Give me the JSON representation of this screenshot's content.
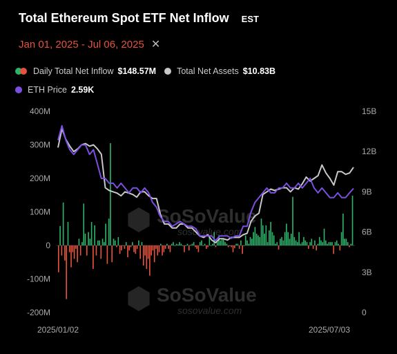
{
  "header": {
    "title": "Total Ethereum Spot ETF Net Inflow",
    "timezone": "EST",
    "date_range": "Jan 01, 2025 - Jul 06, 2025",
    "close_icon": "close-icon"
  },
  "legend": {
    "inflow_label": "Daily Total Net Inflow",
    "inflow_value": "$148.57M",
    "assets_label": "Total Net Assets",
    "assets_value": "$10.83B",
    "eth_label": "ETH Price",
    "eth_value": "2.59K"
  },
  "watermark": {
    "brand": "SoSoValue",
    "url": "sosovalue.com"
  },
  "colors": {
    "positive": "#2db36a",
    "negative": "#e5533d",
    "assets": "#c8c8c8",
    "eth": "#7b4fe0"
  },
  "chart_data": {
    "type": "bar",
    "title": "Total Ethereum Spot ETF Net Inflow",
    "y_left_ticks": [
      "400M",
      "300M",
      "200M",
      "100M",
      "0",
      "-100M",
      "-200M"
    ],
    "y_left_range": [
      -200,
      400
    ],
    "y_left_unit": "M",
    "y_right_ticks": [
      "15B",
      "12B",
      "9B",
      "6B",
      "3B",
      "0"
    ],
    "y_right_range": [
      0,
      15
    ],
    "y_right_unit": "B",
    "x_tick_labels": [
      "2025/01/02",
      "2025/07/03"
    ],
    "x_range": [
      "2025/01/02",
      "2025/07/03"
    ],
    "daily_net_inflow_M": [
      -80,
      58,
      -30,
      128,
      -45,
      -160,
      70,
      -20,
      -65,
      -20,
      -40,
      -10,
      -50,
      20,
      -30,
      10,
      125,
      35,
      -30,
      40,
      20,
      70,
      -70,
      60,
      -30,
      15,
      15,
      -40,
      20,
      10,
      65,
      -55,
      80,
      305,
      -50,
      20,
      15,
      -5,
      25,
      -25,
      -15,
      0,
      -10,
      10,
      -35,
      -15,
      -5,
      10,
      -20,
      -25,
      -10,
      15,
      -40,
      10,
      -60,
      -30,
      -70,
      -40,
      -90,
      -30,
      -15,
      -50,
      -10,
      -30,
      -20,
      5,
      -30,
      -20,
      -10,
      5,
      -10,
      -20,
      5,
      10,
      0,
      5,
      3,
      10,
      5,
      0,
      -20,
      0,
      5,
      -15,
      2,
      5,
      10,
      -5,
      -10,
      -20,
      10,
      15,
      0,
      5,
      -10,
      -5,
      25,
      0,
      5,
      40,
      -5,
      10,
      30,
      15,
      20,
      20,
      10,
      5,
      -5,
      0,
      -5,
      -20,
      -8,
      5,
      5,
      -10,
      15,
      -25,
      0,
      30,
      15,
      5,
      25,
      20,
      40,
      55,
      35,
      30,
      25,
      80,
      60,
      35,
      60,
      10,
      45,
      70,
      40,
      30,
      5,
      10,
      -12,
      20,
      25,
      15,
      40,
      65,
      40,
      20,
      35,
      145,
      25,
      15,
      10,
      40,
      5,
      10,
      25,
      15,
      10,
      -10,
      10,
      20,
      -10,
      15,
      -15,
      5,
      25,
      15,
      10,
      50,
      15,
      5,
      10,
      10,
      10,
      -25,
      10,
      15,
      5,
      -15,
      40,
      95,
      20,
      20,
      10,
      -5,
      5,
      148.57
    ],
    "total_net_assets_B": [
      12.3,
      13.7,
      12.9,
      12.4,
      12.0,
      12.2,
      12.5,
      12.6,
      12.4,
      12.5,
      12.2,
      11.8,
      9.3,
      9.1,
      9.0,
      8.9,
      8.7,
      9.0,
      8.9,
      8.8,
      8.6,
      9.0,
      9.0,
      8.7,
      8.5,
      8.5,
      7.3,
      6.6,
      6.6,
      6.3,
      6.3,
      6.6,
      6.6,
      6.3,
      6.3,
      6.0,
      5.7,
      5.6,
      5.8,
      5.4,
      5.2,
      5.5,
      5.5,
      5.4,
      5.6,
      5.6,
      5.6,
      5.8,
      5.9,
      6.8,
      7.2,
      7.4,
      8.8,
      9.0,
      9.2,
      9.1,
      9.2,
      9.3,
      9.3,
      9.0,
      9.3,
      9.2,
      9.6,
      10.1,
      9.8,
      10.0,
      10.2,
      11.0,
      10.4,
      10.0,
      9.5,
      10.5,
      10.5,
      10.3,
      10.4,
      10.83
    ],
    "eth_price_K": [
      3.6,
      3.9,
      3.6,
      3.4,
      3.3,
      3.4,
      3.5,
      3.5,
      3.3,
      3.4,
      3.1,
      2.8,
      2.8,
      2.7,
      2.7,
      2.6,
      2.7,
      2.6,
      2.5,
      2.6,
      2.6,
      2.5,
      2.6,
      2.5,
      2.3,
      2.2,
      2.0,
      1.9,
      1.9,
      1.8,
      1.85,
      1.9,
      1.85,
      1.8,
      1.8,
      1.75,
      1.6,
      1.6,
      1.6,
      1.6,
      1.5,
      1.6,
      1.6,
      1.6,
      1.55,
      1.6,
      1.6,
      1.8,
      1.8,
      2.1,
      2.3,
      2.4,
      2.5,
      2.6,
      2.5,
      2.5,
      2.6,
      2.6,
      2.7,
      2.6,
      2.6,
      2.7,
      2.6,
      2.7,
      2.8,
      2.6,
      2.5,
      2.6,
      2.5,
      2.4,
      2.4,
      2.5,
      2.4,
      2.4,
      2.5,
      2.59
    ],
    "series": [
      {
        "name": "Daily Total Net Inflow"
      },
      {
        "name": "Total Net Assets"
      },
      {
        "name": "ETH Price"
      }
    ]
  }
}
